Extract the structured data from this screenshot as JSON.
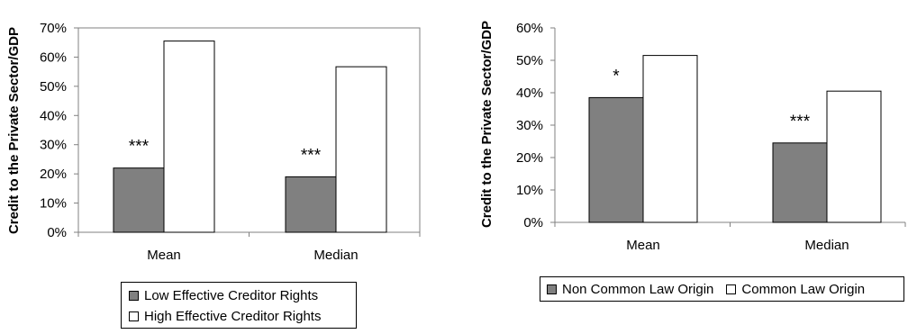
{
  "chart_data": [
    {
      "type": "bar",
      "categories": [
        "Mean",
        "Median"
      ],
      "series": [
        {
          "name": "Low Effective Creditor Rights",
          "values": [
            0.22,
            0.19
          ]
        },
        {
          "name": "High Effective Creditor Rights",
          "values": [
            0.655,
            0.567
          ]
        }
      ],
      "annotations": [
        "***",
        "***"
      ],
      "ylabel": "Credit to the Private Sector/GDP",
      "yticks": [
        "0%",
        "10%",
        "20%",
        "30%",
        "40%",
        "50%",
        "60%",
        "70%"
      ],
      "ylim": [
        0,
        0.7
      ],
      "legend": "bottom",
      "colors": {
        "low": "#808080",
        "high": "#ffffff",
        "axis": "#808080"
      }
    },
    {
      "type": "bar",
      "categories": [
        "Mean",
        "Median"
      ],
      "series": [
        {
          "name": "Non Common Law Origin",
          "values": [
            0.385,
            0.245
          ]
        },
        {
          "name": "Common Law Origin",
          "values": [
            0.515,
            0.405
          ]
        }
      ],
      "annotations": [
        "*",
        "***"
      ],
      "ylabel": "Credit to the Private Sector/GDP",
      "yticks": [
        "0%",
        "10%",
        "20%",
        "30%",
        "40%",
        "50%",
        "60%"
      ],
      "ylim": [
        0,
        0.6
      ],
      "legend": "bottom",
      "colors": {
        "low": "#808080",
        "high": "#ffffff",
        "axis": "#808080"
      }
    }
  ]
}
